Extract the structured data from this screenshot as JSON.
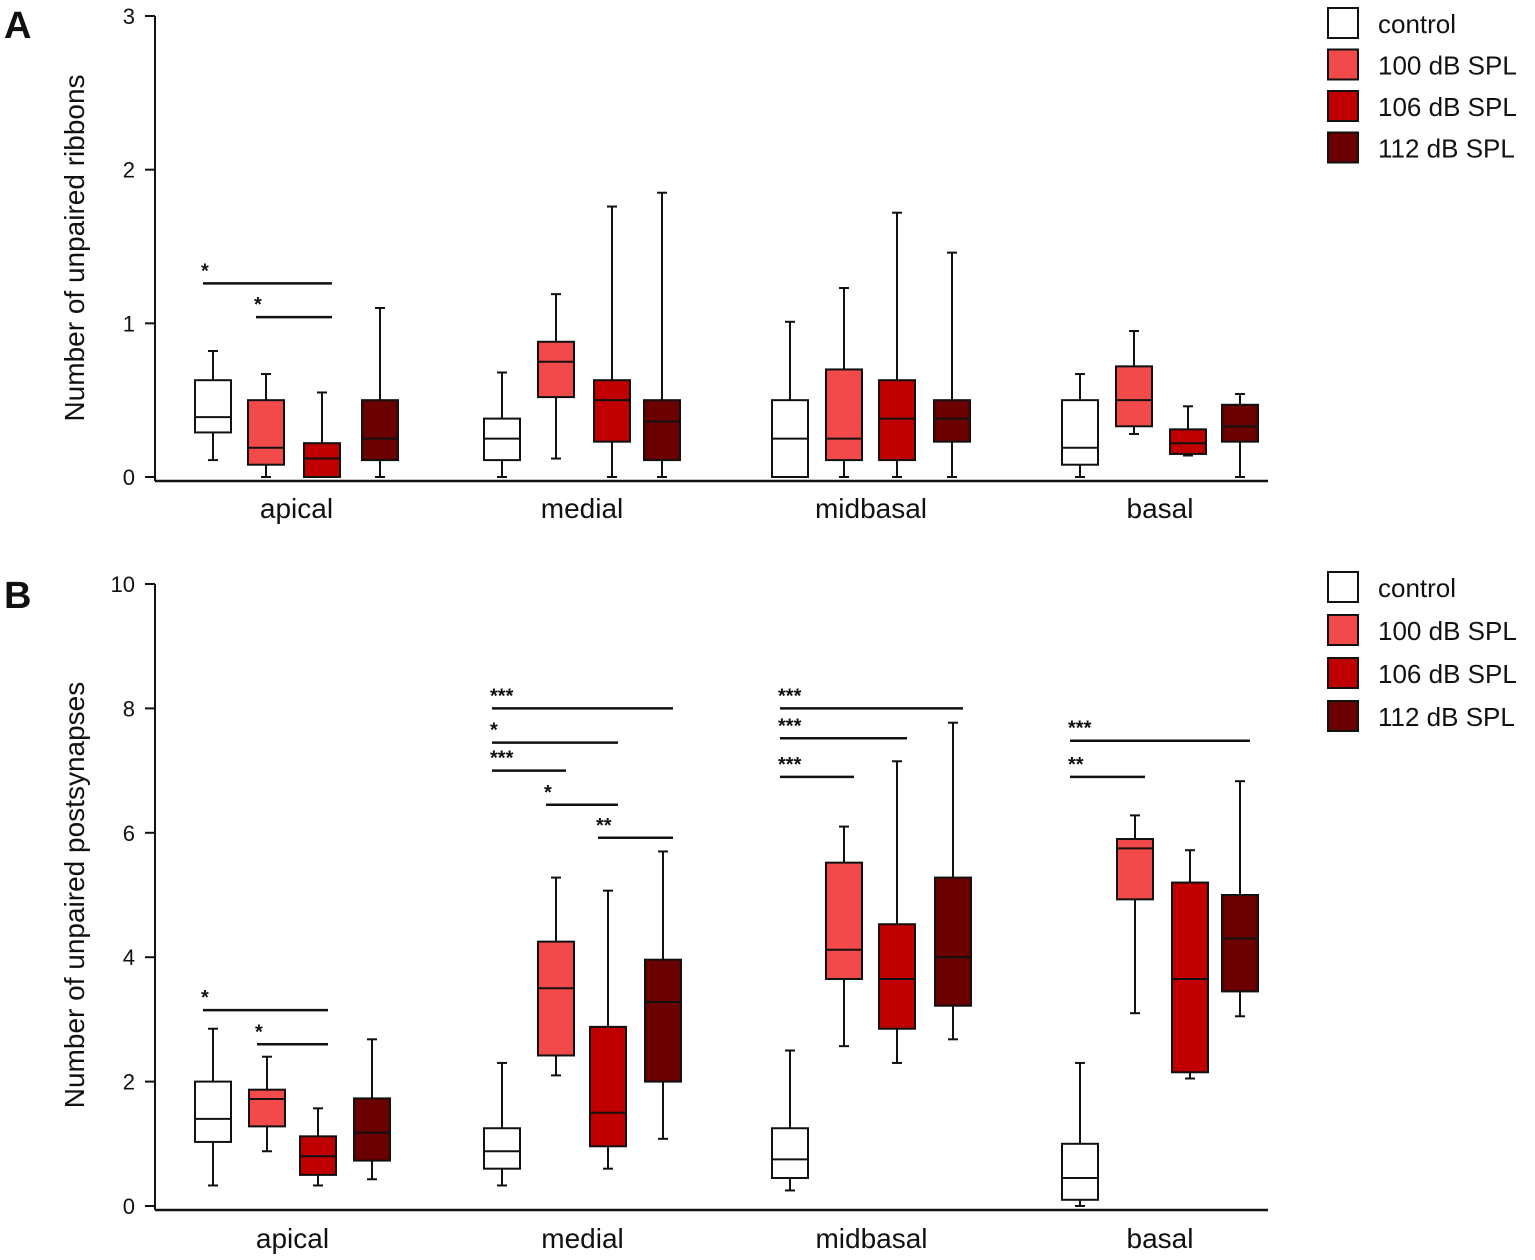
{
  "panels": [
    {
      "letter": "A",
      "chart_data": {
        "type": "box",
        "ylabel": "Number of unpaired ribbons",
        "ylim": [
          0,
          3
        ],
        "yticks": [
          0,
          1,
          2,
          3
        ],
        "categories": [
          "apical",
          "medial",
          "midbasal",
          "basal"
        ],
        "series": [
          {
            "name": "control",
            "color": "#ffffff",
            "boxes": [
              {
                "min": 0.11,
                "q1": 0.29,
                "median": 0.39,
                "q3": 0.63,
                "max": 0.82
              },
              {
                "min": 0.0,
                "q1": 0.11,
                "median": 0.25,
                "q3": 0.38,
                "max": 0.68
              },
              {
                "min": 0.0,
                "q1": 0.0,
                "median": 0.25,
                "q3": 0.5,
                "max": 1.01
              },
              {
                "min": 0.0,
                "q1": 0.08,
                "median": 0.19,
                "q3": 0.5,
                "max": 0.67
              }
            ]
          },
          {
            "name": "100 dB SPL",
            "color": "#f24a4a",
            "boxes": [
              {
                "min": 0.0,
                "q1": 0.08,
                "median": 0.19,
                "q3": 0.5,
                "max": 0.67
              },
              {
                "min": 0.12,
                "q1": 0.52,
                "median": 0.75,
                "q3": 0.88,
                "max": 1.19
              },
              {
                "min": 0.0,
                "q1": 0.11,
                "median": 0.25,
                "q3": 0.7,
                "max": 1.23
              },
              {
                "min": 0.28,
                "q1": 0.33,
                "median": 0.5,
                "q3": 0.72,
                "max": 0.95
              }
            ]
          },
          {
            "name": "106 dB SPL",
            "color": "#c00000",
            "boxes": [
              {
                "min": 0.0,
                "q1": 0.0,
                "median": 0.12,
                "q3": 0.22,
                "max": 0.55
              },
              {
                "min": 0.0,
                "q1": 0.23,
                "median": 0.5,
                "q3": 0.63,
                "max": 1.76
              },
              {
                "min": 0.0,
                "q1": 0.11,
                "median": 0.38,
                "q3": 0.63,
                "max": 1.72
              },
              {
                "min": 0.14,
                "q1": 0.15,
                "median": 0.22,
                "q3": 0.31,
                "max": 0.46
              }
            ]
          },
          {
            "name": "112 dB SPL",
            "color": "#6a0000",
            "boxes": [
              {
                "min": 0.0,
                "q1": 0.11,
                "median": 0.25,
                "q3": 0.5,
                "max": 1.1
              },
              {
                "min": 0.0,
                "q1": 0.11,
                "median": 0.36,
                "q3": 0.5,
                "max": 1.85
              },
              {
                "min": 0.0,
                "q1": 0.23,
                "median": 0.38,
                "q3": 0.5,
                "max": 1.46
              },
              {
                "min": 0.0,
                "q1": 0.23,
                "median": 0.33,
                "q3": 0.47,
                "max": 0.54
              }
            ]
          }
        ],
        "significance": [
          {
            "group": 0,
            "from": 0,
            "to": 2,
            "label": "*",
            "y": 1.26
          },
          {
            "group": 0,
            "from": 1,
            "to": 2,
            "label": "*",
            "y": 1.04
          }
        ]
      }
    },
    {
      "letter": "B",
      "chart_data": {
        "type": "box",
        "ylabel": "Number of unpaired postsynapses",
        "ylim": [
          0,
          10
        ],
        "yticks": [
          0,
          2,
          4,
          6,
          8,
          10
        ],
        "categories": [
          "apical",
          "medial",
          "midbasal",
          "basal"
        ],
        "series": [
          {
            "name": "control",
            "color": "#ffffff",
            "boxes": [
              {
                "min": 0.33,
                "q1": 1.03,
                "median": 1.4,
                "q3": 2.0,
                "max": 2.85
              },
              {
                "min": 0.33,
                "q1": 0.6,
                "median": 0.88,
                "q3": 1.25,
                "max": 2.3
              },
              {
                "min": 0.25,
                "q1": 0.45,
                "median": 0.75,
                "q3": 1.25,
                "max": 2.5
              },
              {
                "min": 0.0,
                "q1": 0.1,
                "median": 0.45,
                "q3": 1.0,
                "max": 2.3
              }
            ]
          },
          {
            "name": "100 dB SPL",
            "color": "#f24a4a",
            "boxes": [
              {
                "min": 0.88,
                "q1": 1.28,
                "median": 1.72,
                "q3": 1.87,
                "max": 2.4
              },
              {
                "min": 2.1,
                "q1": 2.42,
                "median": 3.5,
                "q3": 4.25,
                "max": 5.28
              },
              {
                "min": 2.57,
                "q1": 3.65,
                "median": 4.12,
                "q3": 5.52,
                "max": 6.1
              },
              {
                "min": 3.1,
                "q1": 4.93,
                "median": 5.75,
                "q3": 5.9,
                "max": 6.28
              }
            ]
          },
          {
            "name": "106 dB SPL",
            "color": "#c00000",
            "boxes": [
              {
                "min": 0.33,
                "q1": 0.5,
                "median": 0.8,
                "q3": 1.12,
                "max": 1.57
              },
              {
                "min": 0.6,
                "q1": 0.96,
                "median": 1.5,
                "q3": 2.88,
                "max": 5.07
              },
              {
                "min": 2.3,
                "q1": 2.85,
                "median": 3.65,
                "q3": 4.53,
                "max": 7.15
              },
              {
                "min": 2.05,
                "q1": 2.15,
                "median": 3.65,
                "q3": 5.2,
                "max": 5.72
              }
            ]
          },
          {
            "name": "112 dB SPL",
            "color": "#6a0000",
            "boxes": [
              {
                "min": 0.43,
                "q1": 0.73,
                "median": 1.18,
                "q3": 1.73,
                "max": 2.68
              },
              {
                "min": 1.08,
                "q1": 2.0,
                "median": 3.28,
                "q3": 3.96,
                "max": 5.7
              },
              {
                "min": 2.68,
                "q1": 3.22,
                "median": 4.0,
                "q3": 5.28,
                "max": 7.77
              },
              {
                "min": 3.05,
                "q1": 3.45,
                "median": 4.3,
                "q3": 5.0,
                "max": 6.83
              }
            ]
          }
        ],
        "significance": [
          {
            "group": 0,
            "from": 0,
            "to": 2,
            "label": "*",
            "y": 3.15
          },
          {
            "group": 0,
            "from": 1,
            "to": 2,
            "label": "*",
            "y": 2.6
          },
          {
            "group": 1,
            "from": 0,
            "to": 3,
            "label": "***",
            "y": 8.0
          },
          {
            "group": 1,
            "from": 0,
            "to": 2,
            "label": "*",
            "y": 7.45
          },
          {
            "group": 1,
            "from": 0,
            "to": 1,
            "label": "***",
            "y": 7.0
          },
          {
            "group": 1,
            "from": 1,
            "to": 2,
            "label": "*",
            "y": 6.45
          },
          {
            "group": 1,
            "from": 2,
            "to": 3,
            "label": "**",
            "y": 5.92
          },
          {
            "group": 2,
            "from": 0,
            "to": 3,
            "label": "***",
            "y": 8.0
          },
          {
            "group": 2,
            "from": 0,
            "to": 2,
            "label": "***",
            "y": 7.52
          },
          {
            "group": 2,
            "from": 0,
            "to": 1,
            "label": "***",
            "y": 6.9
          },
          {
            "group": 3,
            "from": 0,
            "to": 3,
            "label": "***",
            "y": 7.48
          },
          {
            "group": 3,
            "from": 0,
            "to": 1,
            "label": "**",
            "y": 6.9
          }
        ]
      }
    }
  ]
}
